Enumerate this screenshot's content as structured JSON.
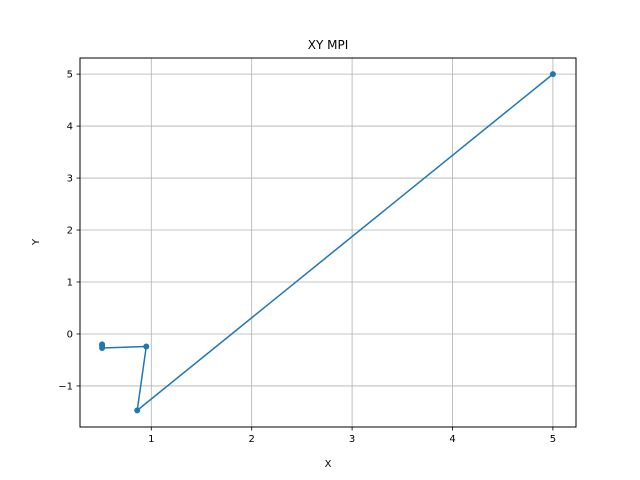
{
  "chart_data": {
    "type": "line",
    "title": "XY MPI",
    "xlabel": "X",
    "ylabel": "Y",
    "xlim": [
      0.29,
      5.23
    ],
    "ylim": [
      -1.79,
      5.31
    ],
    "xticks": [
      1,
      2,
      3,
      4,
      5
    ],
    "yticks": [
      -1,
      0,
      1,
      2,
      3,
      4,
      5
    ],
    "xtick_labels": [
      "1",
      "2",
      "3",
      "4",
      "5"
    ],
    "ytick_labels": [
      "−1",
      "0",
      "1",
      "2",
      "3",
      "4",
      "5"
    ],
    "grid": true,
    "color": "#1f77b4",
    "series": [
      {
        "x": [
          0.51,
          0.51,
          0.51,
          0.95,
          0.86,
          5.0
        ],
        "y": [
          -0.2,
          -0.23,
          -0.27,
          -0.24,
          -1.47,
          5.0
        ]
      }
    ]
  }
}
